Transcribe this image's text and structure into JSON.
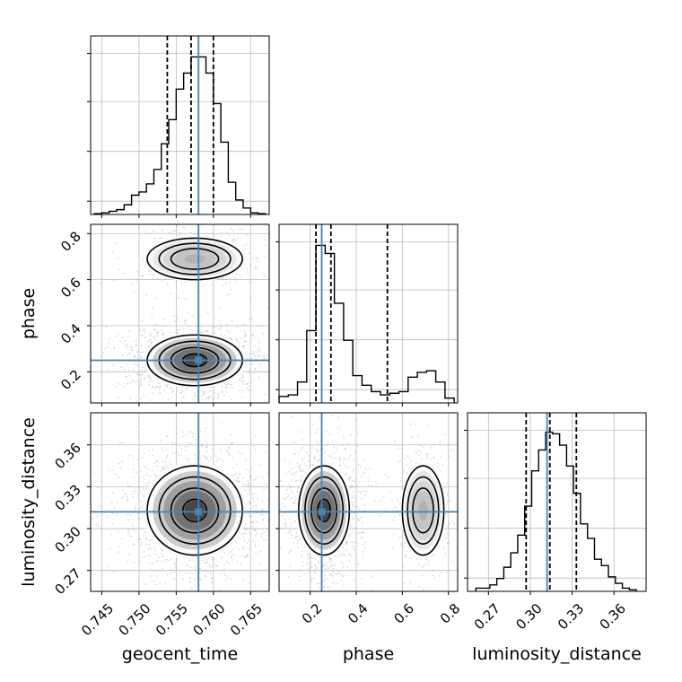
{
  "chart_data": {
    "type": "corner",
    "parameters": [
      "geocent_time",
      "phase",
      "luminosity_distance"
    ],
    "truth": {
      "geocent_time": 0.758,
      "phase": 0.25,
      "luminosity_distance": 0.312
    },
    "truth_color": "#4682b4",
    "quantile_color": "#000000",
    "grid": true,
    "ranges": {
      "geocent_time": [
        0.7435,
        0.7675
      ],
      "phase": [
        0.065,
        0.84
      ],
      "luminosity_distance": [
        0.255,
        0.383
      ]
    },
    "ticks": {
      "geocent_time": {
        "values": [
          0.745,
          0.75,
          0.755,
          0.76,
          0.765
        ],
        "labels": [
          "0.745",
          "0.750",
          "0.755",
          "0.760",
          "0.765"
        ]
      },
      "phase": {
        "values": [
          0.2,
          0.4,
          0.6,
          0.8
        ],
        "labels": [
          "0.2",
          "0.4",
          "0.6",
          "0.8"
        ]
      },
      "luminosity_distance": {
        "values": [
          0.27,
          0.3,
          0.33,
          0.36
        ],
        "labels": [
          "0.27",
          "0.30",
          "0.33",
          "0.36"
        ]
      }
    },
    "quantiles": {
      "geocent_time": [
        0.7538,
        0.757,
        0.76
      ],
      "phase": [
        0.225,
        0.29,
        0.535
      ],
      "luminosity_distance": [
        0.297,
        0.314,
        0.333
      ]
    },
    "histograms": {
      "geocent_time": {
        "bins": [
          0.744,
          0.745,
          0.746,
          0.747,
          0.748,
          0.749,
          0.75,
          0.751,
          0.752,
          0.753,
          0.754,
          0.755,
          0.756,
          0.757,
          0.758,
          0.759,
          0.76,
          0.761,
          0.762,
          0.763,
          0.764,
          0.765,
          0.766,
          0.767
        ],
        "counts": [
          0.005,
          0.01,
          0.02,
          0.03,
          0.06,
          0.12,
          0.14,
          0.19,
          0.28,
          0.44,
          0.59,
          0.78,
          0.88,
          0.98,
          0.98,
          0.88,
          0.69,
          0.45,
          0.2,
          0.09,
          0.04,
          0.01,
          0.005
        ]
      },
      "phase": {
        "bins": [
          0.065,
          0.105,
          0.145,
          0.185,
          0.225,
          0.265,
          0.305,
          0.345,
          0.385,
          0.425,
          0.465,
          0.505,
          0.545,
          0.585,
          0.625,
          0.665,
          0.705,
          0.745,
          0.785,
          0.825
        ],
        "counts": [
          0.04,
          0.05,
          0.13,
          0.45,
          0.98,
          0.93,
          0.62,
          0.39,
          0.17,
          0.11,
          0.07,
          0.05,
          0.06,
          0.07,
          0.16,
          0.19,
          0.2,
          0.13,
          0.03
        ]
      },
      "luminosity_distance": {
        "bins": [
          0.261,
          0.266,
          0.271,
          0.276,
          0.281,
          0.286,
          0.291,
          0.296,
          0.301,
          0.306,
          0.311,
          0.316,
          0.321,
          0.326,
          0.331,
          0.336,
          0.341,
          0.346,
          0.351,
          0.356,
          0.361,
          0.366,
          0.371,
          0.376
        ],
        "counts": [
          0.02,
          0.02,
          0.04,
          0.08,
          0.15,
          0.24,
          0.35,
          0.53,
          0.75,
          0.88,
          0.99,
          0.98,
          0.91,
          0.78,
          0.61,
          0.42,
          0.33,
          0.2,
          0.16,
          0.09,
          0.05,
          0.02,
          0.01
        ]
      }
    }
  }
}
